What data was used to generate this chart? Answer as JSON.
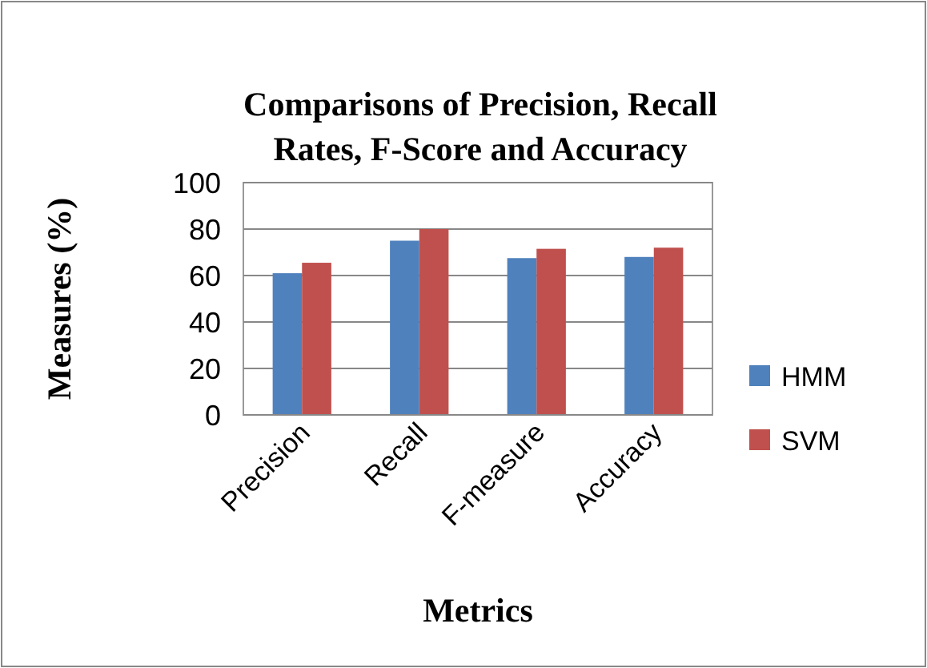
{
  "chart_data": {
    "type": "bar",
    "title": "Comparisons of Precision, Recall Rates, F-Score and Accuracy",
    "xlabel": "Metrics",
    "ylabel": "Measures (%)",
    "categories": [
      "Precision",
      "Recall",
      "F-measure",
      "Accuracy"
    ],
    "series": [
      {
        "name": "HMM",
        "color": "#4f81bd",
        "values": [
          61,
          75,
          67.5,
          68
        ]
      },
      {
        "name": "SVM",
        "color": "#c0504d",
        "values": [
          65.5,
          80,
          71.5,
          72
        ]
      }
    ],
    "ylim": [
      0,
      100
    ],
    "yticks": [
      0,
      20,
      40,
      60,
      80,
      100
    ],
    "grid": "y",
    "legend": "right"
  }
}
